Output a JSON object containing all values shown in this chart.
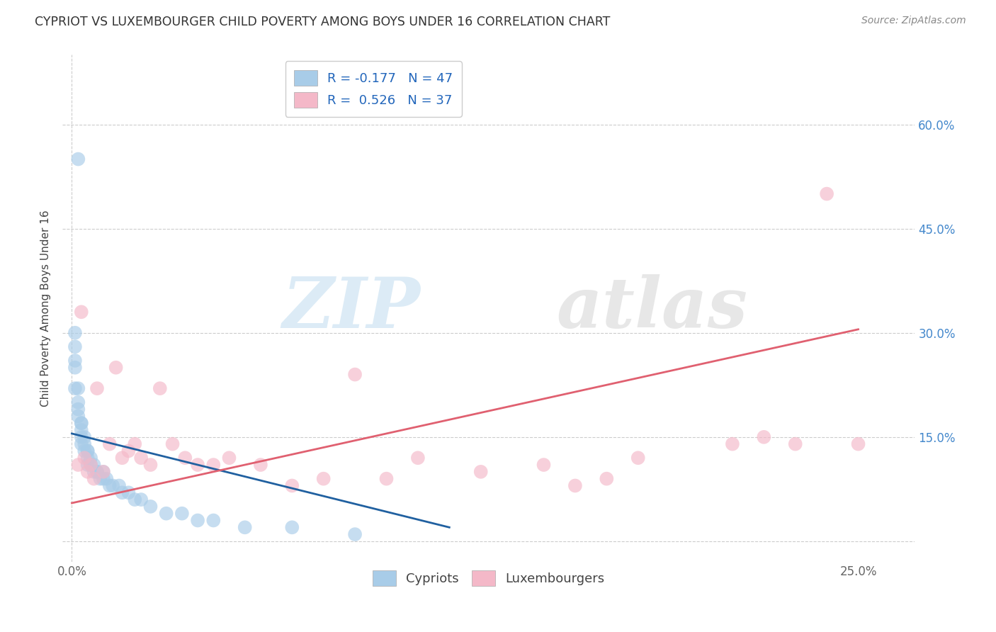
{
  "title": "CYPRIOT VS LUXEMBOURGER CHILD POVERTY AMONG BOYS UNDER 16 CORRELATION CHART",
  "source": "Source: ZipAtlas.com",
  "ylabel": "Child Poverty Among Boys Under 16",
  "x_ticks": [
    0.0,
    0.05,
    0.1,
    0.15,
    0.2,
    0.25
  ],
  "x_tick_labels": [
    "0.0%",
    "",
    "",
    "",
    "",
    "25.0%"
  ],
  "y_ticks": [
    0.0,
    0.15,
    0.3,
    0.45,
    0.6
  ],
  "y_tick_labels": [
    "",
    "15.0%",
    "30.0%",
    "45.0%",
    "60.0%"
  ],
  "xlim": [
    -0.003,
    0.268
  ],
  "ylim": [
    -0.03,
    0.7
  ],
  "legend_labels_bottom": [
    "Cypriots",
    "Luxembourgers"
  ],
  "color_blue": "#a8cce8",
  "color_pink": "#f4b8c8",
  "color_blue_line": "#2060a0",
  "color_pink_line": "#e06070",
  "title_color": "#333333",
  "source_color": "#888888",
  "tick_color": "#666666",
  "grid_color": "#cccccc",
  "cypriot_x": [
    0.002,
    0.001,
    0.001,
    0.001,
    0.001,
    0.001,
    0.002,
    0.002,
    0.002,
    0.002,
    0.003,
    0.003,
    0.003,
    0.003,
    0.003,
    0.004,
    0.004,
    0.004,
    0.005,
    0.005,
    0.005,
    0.005,
    0.006,
    0.006,
    0.007,
    0.007,
    0.008,
    0.008,
    0.009,
    0.01,
    0.01,
    0.011,
    0.012,
    0.013,
    0.015,
    0.016,
    0.018,
    0.02,
    0.022,
    0.025,
    0.03,
    0.035,
    0.04,
    0.045,
    0.055,
    0.07,
    0.09
  ],
  "cypriot_y": [
    0.55,
    0.3,
    0.28,
    0.26,
    0.25,
    0.22,
    0.22,
    0.2,
    0.19,
    0.18,
    0.17,
    0.17,
    0.16,
    0.15,
    0.14,
    0.15,
    0.14,
    0.13,
    0.13,
    0.13,
    0.12,
    0.11,
    0.12,
    0.11,
    0.11,
    0.1,
    0.1,
    0.1,
    0.09,
    0.1,
    0.09,
    0.09,
    0.08,
    0.08,
    0.08,
    0.07,
    0.07,
    0.06,
    0.06,
    0.05,
    0.04,
    0.04,
    0.03,
    0.03,
    0.02,
    0.02,
    0.01
  ],
  "luxembourger_x": [
    0.002,
    0.003,
    0.004,
    0.005,
    0.006,
    0.007,
    0.008,
    0.01,
    0.012,
    0.014,
    0.016,
    0.018,
    0.02,
    0.022,
    0.025,
    0.028,
    0.032,
    0.036,
    0.04,
    0.045,
    0.05,
    0.06,
    0.07,
    0.08,
    0.09,
    0.1,
    0.11,
    0.13,
    0.15,
    0.16,
    0.17,
    0.18,
    0.21,
    0.22,
    0.23,
    0.24,
    0.25
  ],
  "luxembourger_y": [
    0.11,
    0.33,
    0.12,
    0.1,
    0.11,
    0.09,
    0.22,
    0.1,
    0.14,
    0.25,
    0.12,
    0.13,
    0.14,
    0.12,
    0.11,
    0.22,
    0.14,
    0.12,
    0.11,
    0.11,
    0.12,
    0.11,
    0.08,
    0.09,
    0.24,
    0.09,
    0.12,
    0.1,
    0.11,
    0.08,
    0.09,
    0.12,
    0.14,
    0.15,
    0.14,
    0.5,
    0.14
  ],
  "blue_trendline_x": [
    0.0,
    0.12
  ],
  "blue_trendline_y": [
    0.155,
    0.02
  ],
  "pink_trendline_x": [
    0.0,
    0.25
  ],
  "pink_trendline_y": [
    0.055,
    0.305
  ],
  "dot_size": 200,
  "dot_alpha": 0.65
}
